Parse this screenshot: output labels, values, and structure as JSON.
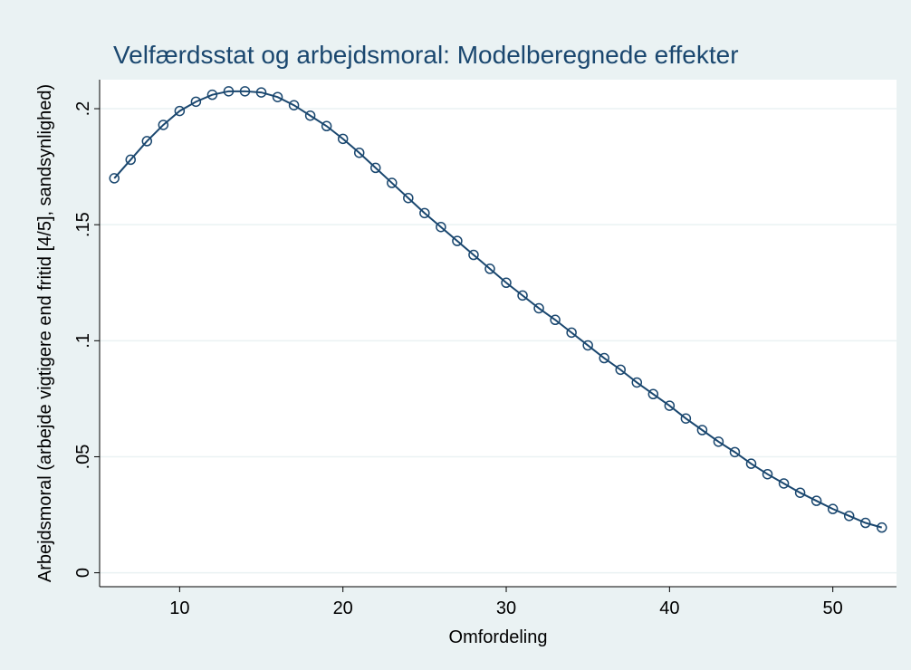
{
  "chart_data": {
    "type": "line",
    "title": "Velfærdsstat og arbejdsmoral: Modelberegnede effekter",
    "x_label": "Omfordeling",
    "y_label": "Arbejdsmoral (arbejde vigtigere end fritid [4/5], sandsynlighed)",
    "x": [
      6,
      7,
      8,
      9,
      10,
      11,
      12,
      13,
      14,
      15,
      16,
      17,
      18,
      19,
      20,
      21,
      22,
      23,
      24,
      25,
      26,
      27,
      28,
      29,
      30,
      31,
      32,
      33,
      34,
      35,
      36,
      37,
      38,
      39,
      40,
      41,
      42,
      43,
      44,
      45,
      46,
      47,
      48,
      49,
      50,
      51,
      52,
      53
    ],
    "series": [
      {
        "color": "#1a476f",
        "values": [
          0.17,
          0.178,
          0.186,
          0.193,
          0.199,
          0.203,
          0.206,
          0.2075,
          0.2075,
          0.207,
          0.205,
          0.2015,
          0.197,
          0.1925,
          0.187,
          0.181,
          0.1745,
          0.168,
          0.1615,
          0.155,
          0.149,
          0.143,
          0.137,
          0.131,
          0.125,
          0.1195,
          0.114,
          0.109,
          0.1035,
          0.098,
          0.0925,
          0.0875,
          0.082,
          0.077,
          0.072,
          0.0665,
          0.0615,
          0.0565,
          0.052,
          0.047,
          0.0425,
          0.0385,
          0.0345,
          0.031,
          0.0275,
          0.0245,
          0.0215,
          0.0195
        ]
      }
    ],
    "xlim": [
      5.1,
      53.9
    ],
    "xticks": [
      10,
      20,
      30,
      40,
      50
    ],
    "ylim": [
      -0.006,
      0.2125
    ],
    "yticks": [
      0,
      {
        "value": 0.05,
        "label": ".05"
      },
      {
        "value": 0.1,
        "label": ".1"
      },
      {
        "value": 0.15,
        "label": ".15"
      },
      {
        "value": 0.2,
        "label": ".2"
      }
    ],
    "grid": true
  }
}
